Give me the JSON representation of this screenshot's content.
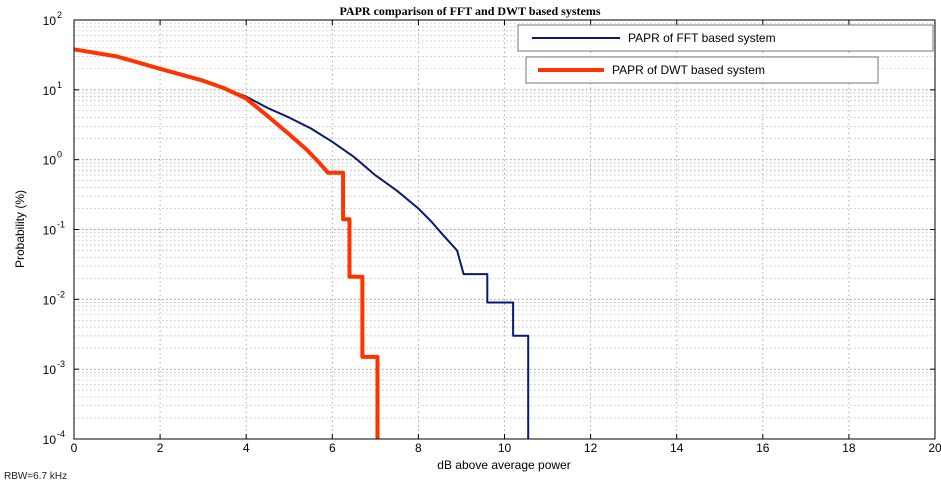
{
  "footer": {
    "rbw": "RBW=6.7 kHz"
  },
  "chart_data": {
    "type": "line",
    "title": "PAPR comparison of FFT and DWT based systems",
    "xlabel": "dB above average power",
    "ylabel": "Probability (%)",
    "xlim": [
      0,
      20
    ],
    "ylim": [
      0.0001,
      100
    ],
    "yscale": "log",
    "grid": true,
    "legend_position": "top-right",
    "x_ticks": [
      0,
      2,
      4,
      6,
      8,
      10,
      12,
      14,
      16,
      18,
      20
    ],
    "y_ticks": [
      {
        "mantissa": "10",
        "exp": "2",
        "value": 100
      },
      {
        "mantissa": "10",
        "exp": "1",
        "value": 10
      },
      {
        "mantissa": "10",
        "exp": "0",
        "value": 1
      },
      {
        "mantissa": "10",
        "exp": "-1",
        "value": 0.1
      },
      {
        "mantissa": "10",
        "exp": "-2",
        "value": 0.01
      },
      {
        "mantissa": "10",
        "exp": "-3",
        "value": 0.001
      },
      {
        "mantissa": "10",
        "exp": "-4",
        "value": 0.0001
      }
    ],
    "series": [
      {
        "name": "PAPR of FFT based system",
        "color": "#0a1a6e",
        "values": [
          [
            0,
            38
          ],
          [
            1,
            30
          ],
          [
            2,
            20
          ],
          [
            3,
            13.5
          ],
          [
            3.5,
            10.5
          ],
          [
            4,
            8
          ],
          [
            4.5,
            5.5
          ],
          [
            5,
            4
          ],
          [
            5.5,
            2.8
          ],
          [
            6,
            1.8
          ],
          [
            6.5,
            1.1
          ],
          [
            7,
            0.6
          ],
          [
            7.5,
            0.36
          ],
          [
            8,
            0.2
          ],
          [
            8.3,
            0.13
          ],
          [
            8.6,
            0.08
          ],
          [
            8.9,
            0.05
          ],
          [
            9.05,
            0.023
          ],
          [
            9.6,
            0.023
          ],
          [
            9.6,
            0.009
          ],
          [
            10.2,
            0.009
          ],
          [
            10.2,
            0.003
          ],
          [
            10.55,
            0.003
          ],
          [
            10.55,
            0.0001
          ]
        ]
      },
      {
        "name": "PAPR of DWT based system",
        "color": "#ff3300",
        "values": [
          [
            0,
            38
          ],
          [
            1,
            30
          ],
          [
            2,
            20
          ],
          [
            3,
            13.5
          ],
          [
            3.5,
            10.5
          ],
          [
            4,
            7.5
          ],
          [
            4.5,
            4.2
          ],
          [
            5,
            2.3
          ],
          [
            5.4,
            1.4
          ],
          [
            5.7,
            0.9
          ],
          [
            5.9,
            0.65
          ],
          [
            6.25,
            0.65
          ],
          [
            6.25,
            0.14
          ],
          [
            6.4,
            0.14
          ],
          [
            6.4,
            0.021
          ],
          [
            6.7,
            0.021
          ],
          [
            6.7,
            0.0015
          ],
          [
            7.05,
            0.0015
          ],
          [
            7.05,
            0.0001
          ]
        ]
      }
    ]
  }
}
